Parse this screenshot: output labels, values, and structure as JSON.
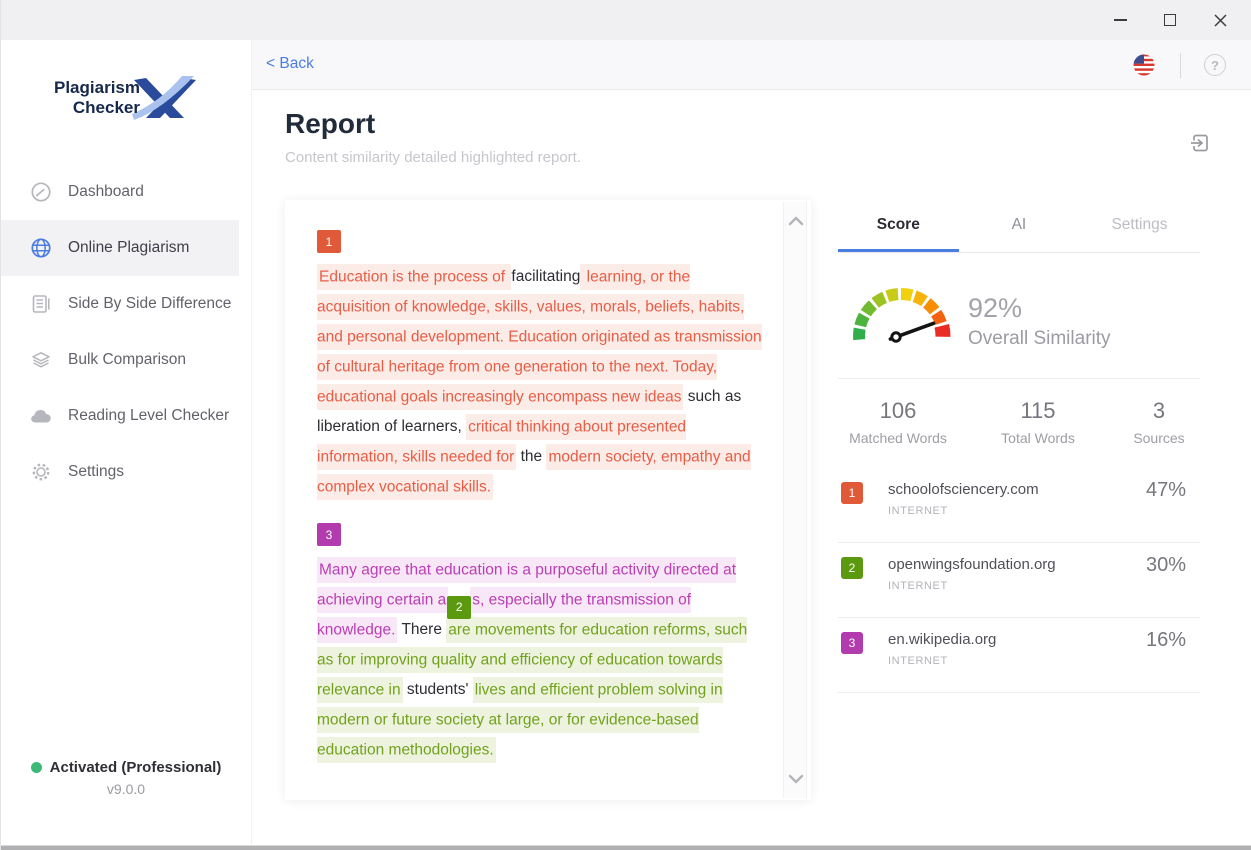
{
  "window": {
    "controls": [
      "minimize",
      "maximize",
      "close"
    ]
  },
  "sidebar": {
    "logo": {
      "line1": "Plagiarism",
      "line2": "Checker",
      "x": "X"
    },
    "items": [
      {
        "label": "Dashboard",
        "icon": "speedometer",
        "active": false
      },
      {
        "label": "Online Plagiarism",
        "icon": "globe",
        "active": true
      },
      {
        "label": "Side By Side Difference",
        "icon": "document",
        "active": false
      },
      {
        "label": "Bulk Comparison",
        "icon": "layers",
        "active": false
      },
      {
        "label": "Reading Level Checker",
        "icon": "cloud",
        "active": false
      },
      {
        "label": "Settings",
        "icon": "gear",
        "active": false
      }
    ],
    "activation": {
      "status": "Activated (Professional)",
      "version": "v9.0.0"
    }
  },
  "topbar": {
    "back": "< Back",
    "help_glyph": "?",
    "language_icon": "us-flag"
  },
  "header": {
    "title": "Report",
    "subtitle": "Content similarity detailed highlighted report."
  },
  "document": {
    "paragraphs": [
      {
        "marker": {
          "num": "1",
          "color": "red"
        },
        "segments": [
          {
            "text": "Education is the process of ",
            "hl": "red"
          },
          {
            "text": "facilitating"
          },
          {
            "text": " learning, or the acquisition of knowledge, skills, values, morals, beliefs, habits, and personal development. Education originated as transmission of cultural heritage from one generation to the next. Today, educational goals increasingly encompass new ideas",
            "hl": "red"
          },
          {
            "text": " such as liberation of learners, "
          },
          {
            "text": "critical thinking about presented information, skills needed for",
            "hl": "red"
          },
          {
            "text": " the "
          },
          {
            "text": "modern society, empathy and complex vocational skills.",
            "hl": "red"
          }
        ]
      },
      {
        "marker": {
          "num": "3",
          "color": "purple"
        },
        "segments": [
          {
            "text": "Many agree that education is a purposeful activity directed at achieving certain a",
            "hl": "purple"
          },
          {
            "badge": {
              "num": "2",
              "color": "green"
            }
          },
          {
            "text": "s, especially the transmission of knowledge.",
            "hl": "purple"
          },
          {
            "text": " There "
          },
          {
            "text": "are movements for education reforms, such as for improving quality and efficiency of education towards relevance in",
            "hl": "green"
          },
          {
            "text": " students' "
          },
          {
            "text": "lives and efficient problem solving in modern or future society at large, or for evidence-based education methodologies.",
            "hl": "green"
          }
        ]
      }
    ]
  },
  "panel": {
    "tabs": [
      {
        "label": "Score",
        "active": true,
        "muted": false
      },
      {
        "label": "AI",
        "active": false,
        "muted": false
      },
      {
        "label": "Settings",
        "active": false,
        "muted": true
      }
    ],
    "gauge": {
      "value": "92%",
      "label": "Overall Similarity",
      "needle_angle": 20,
      "segments": [
        "#2fae4a",
        "#4db33c",
        "#72ba2e",
        "#9cc321",
        "#c9cc16",
        "#f0d10c",
        "#f7b30a",
        "#f78d07",
        "#f4610f",
        "#ea2d24"
      ]
    },
    "stats": [
      {
        "value": "106",
        "label": "Matched Words"
      },
      {
        "value": "115",
        "label": "Total Words"
      },
      {
        "value": "3",
        "label": "Sources"
      }
    ],
    "sources": [
      {
        "num": "1",
        "domain": "schoolofsciencery.com",
        "type": "INTERNET",
        "percent": "47%",
        "color": "#e05a39"
      },
      {
        "num": "2",
        "domain": "openwingsfoundation.org",
        "type": "INTERNET",
        "percent": "30%",
        "color": "#5b990f"
      },
      {
        "num": "3",
        "domain": "en.wikipedia.org",
        "type": "INTERNET",
        "percent": "16%",
        "color": "#b23cae"
      }
    ]
  },
  "colors": {
    "accent_blue": "#4a7de2",
    "activated_green": "#3cb878",
    "highlight_red_text": "#e85d45",
    "highlight_purple_text": "#bb3eb5",
    "highlight_green_text": "#72a21d"
  }
}
